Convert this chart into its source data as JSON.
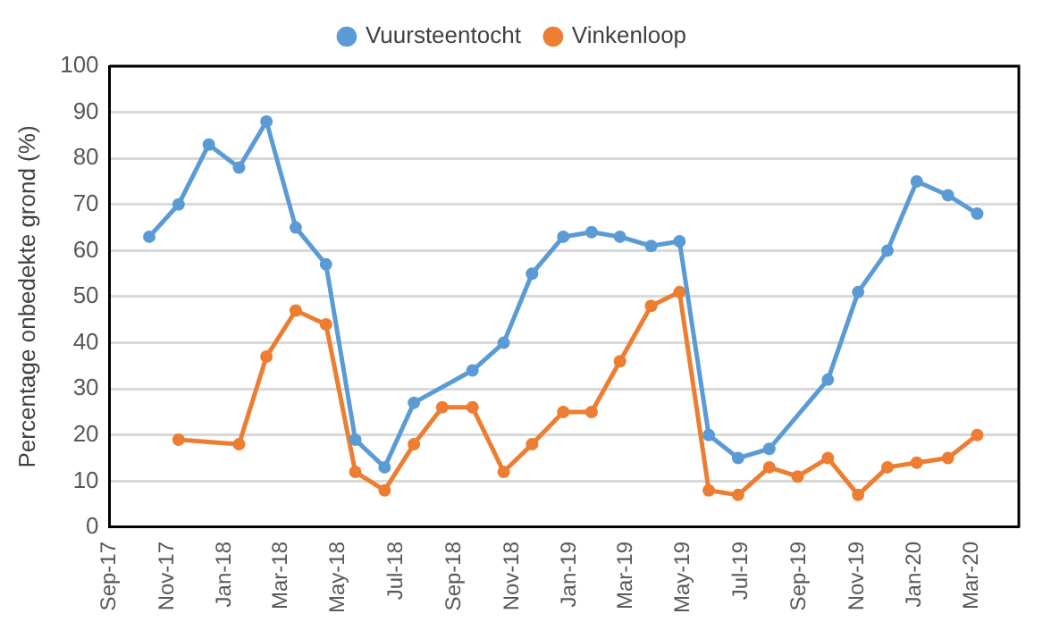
{
  "chart_data": {
    "type": "line",
    "ylabel": "Percentage onbedekte grond (%)",
    "ylim": [
      0,
      100
    ],
    "yticks": [
      0,
      10,
      20,
      30,
      40,
      50,
      60,
      70,
      80,
      90,
      100
    ],
    "xlim": [
      "2017-09-01",
      "2020-04-20"
    ],
    "xticks": [
      {
        "value": "2017-09-01",
        "label": "Sep-17"
      },
      {
        "value": "2017-11-01",
        "label": "Nov-17"
      },
      {
        "value": "2018-01-01",
        "label": "Jan-18"
      },
      {
        "value": "2018-03-01",
        "label": "Mar-18"
      },
      {
        "value": "2018-05-01",
        "label": "May-18"
      },
      {
        "value": "2018-07-01",
        "label": "Jul-18"
      },
      {
        "value": "2018-09-01",
        "label": "Sep-18"
      },
      {
        "value": "2018-11-01",
        "label": "Nov-18"
      },
      {
        "value": "2019-01-01",
        "label": "Jan-19"
      },
      {
        "value": "2019-03-01",
        "label": "Mar-19"
      },
      {
        "value": "2019-05-01",
        "label": "May-19"
      },
      {
        "value": "2019-07-01",
        "label": "Jul-19"
      },
      {
        "value": "2019-09-01",
        "label": "Sep-19"
      },
      {
        "value": "2019-11-01",
        "label": "Nov-19"
      },
      {
        "value": "2020-01-01",
        "label": "Jan-20"
      },
      {
        "value": "2020-03-01",
        "label": "Mar-20"
      }
    ],
    "grid": "y",
    "legend": "top",
    "marker": "circle",
    "line_style": "solid",
    "series": [
      {
        "name": "Vuursteentocht",
        "color": "#5b9bd5",
        "x": [
          "2017-10-13",
          "2017-11-13",
          "2017-12-15",
          "2018-01-16",
          "2018-02-14",
          "2018-03-17",
          "2018-04-18",
          "2018-05-19",
          "2018-06-19",
          "2018-07-20",
          "2018-09-20",
          "2018-10-23",
          "2018-11-22",
          "2018-12-25",
          "2019-01-24",
          "2019-02-23",
          "2019-03-28",
          "2019-04-27",
          "2019-05-28",
          "2019-06-28",
          "2019-07-31",
          "2019-10-01",
          "2019-11-02",
          "2019-12-03",
          "2020-01-03",
          "2020-02-05",
          "2020-03-07"
        ],
        "values": [
          63,
          70,
          83,
          78,
          88,
          65,
          57,
          19,
          13,
          27,
          34,
          40,
          55,
          63,
          64,
          63,
          61,
          62,
          20,
          15,
          17,
          32,
          51,
          60,
          75,
          72,
          68
        ]
      },
      {
        "name": "Vinkenloop",
        "color": "#ed7d31",
        "x": [
          "2017-11-13",
          "2018-01-16",
          "2018-02-14",
          "2018-03-17",
          "2018-04-18",
          "2018-05-19",
          "2018-06-19",
          "2018-07-20",
          "2018-08-19",
          "2018-09-20",
          "2018-10-23",
          "2018-11-22",
          "2018-12-25",
          "2019-01-24",
          "2019-02-23",
          "2019-03-28",
          "2019-04-27",
          "2019-05-28",
          "2019-06-28",
          "2019-07-31",
          "2019-08-30",
          "2019-10-01",
          "2019-11-02",
          "2019-12-03",
          "2020-01-03",
          "2020-02-05",
          "2020-03-07"
        ],
        "values": [
          19,
          18,
          37,
          47,
          44,
          12,
          8,
          18,
          26,
          26,
          12,
          18,
          25,
          25,
          36,
          48,
          51,
          8,
          7,
          13,
          11,
          15,
          7,
          13,
          14,
          15,
          20
        ]
      }
    ]
  }
}
